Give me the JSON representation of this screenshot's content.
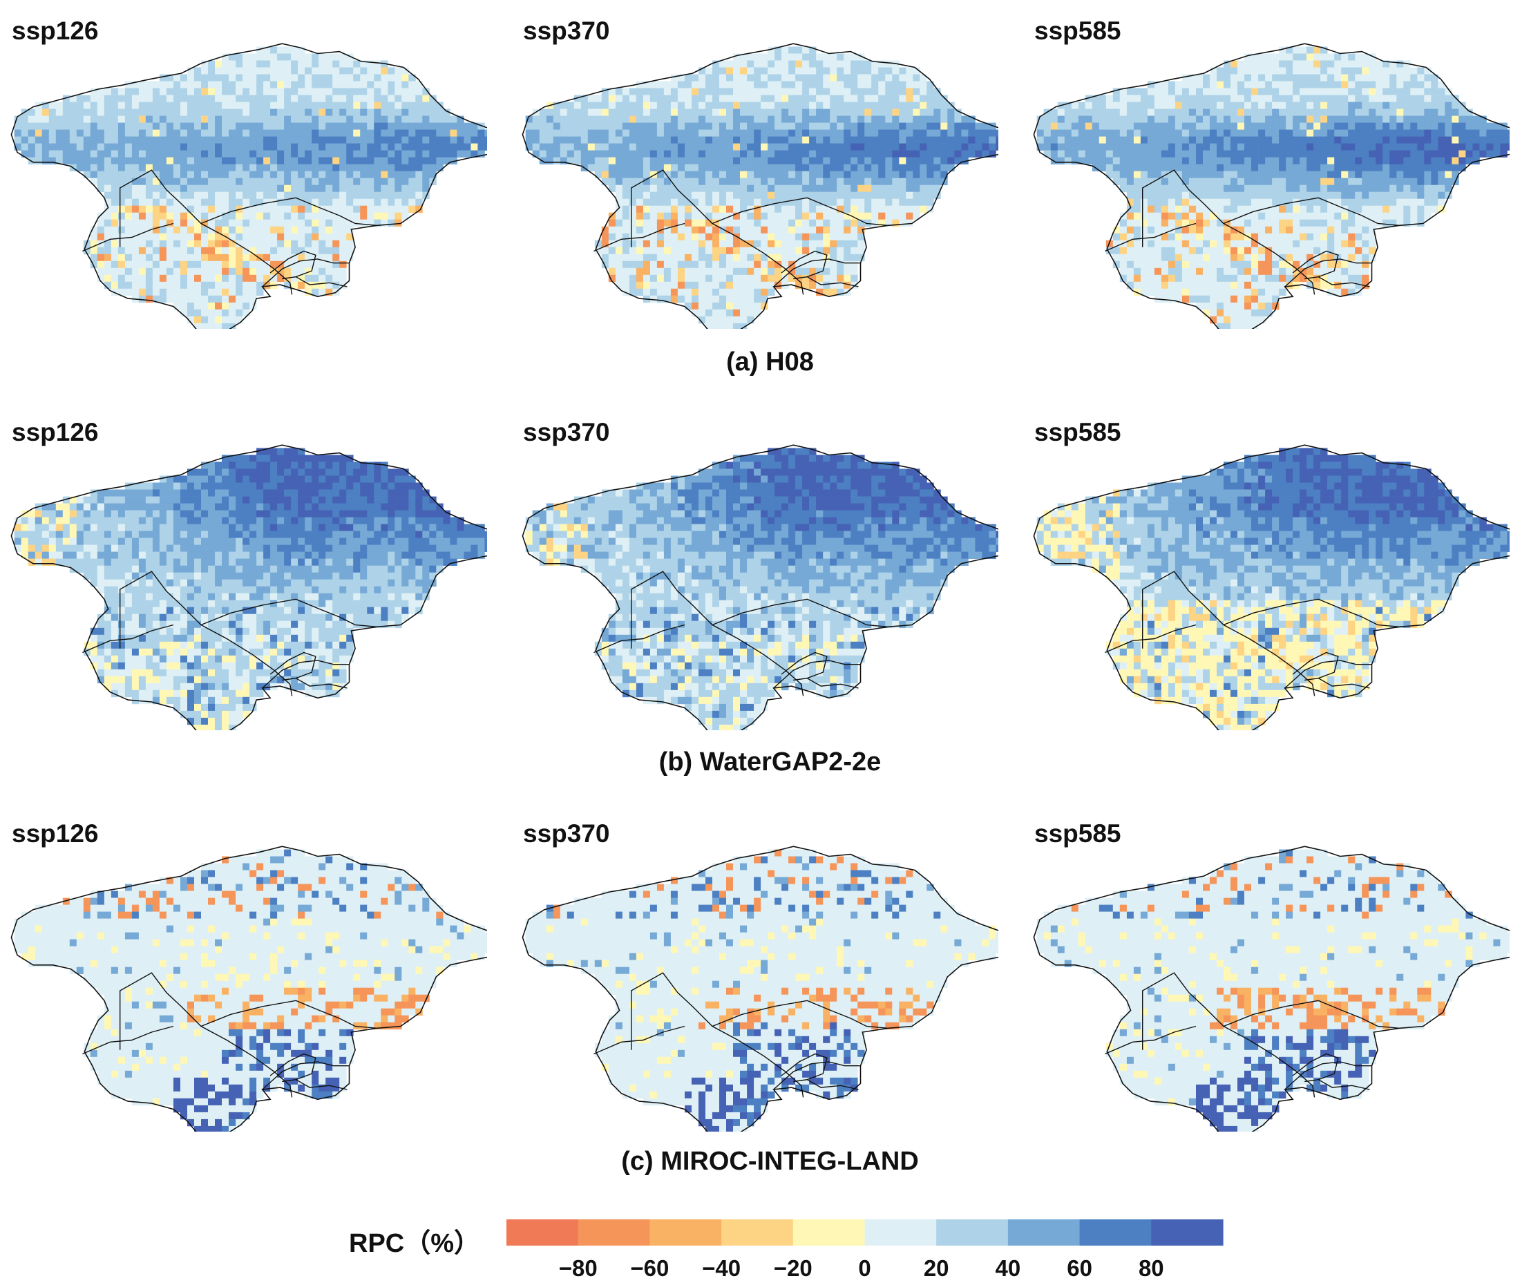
{
  "scenario_order": [
    "ssp126",
    "ssp370",
    "ssp585"
  ],
  "rows": [
    {
      "id": "h08",
      "title": "(a) H08",
      "scenarios": [
        "ssp126",
        "ssp370",
        "ssp585"
      ]
    },
    {
      "id": "watergap",
      "title": "(b) WaterGAP2-2e",
      "scenarios": [
        "ssp126",
        "ssp370",
        "ssp585"
      ]
    },
    {
      "id": "miroc",
      "title": "(c) MIROC-INTEG-LAND",
      "scenarios": [
        "ssp126",
        "ssp370",
        "ssp585"
      ]
    }
  ],
  "legend": {
    "title": "RPC（%）",
    "ticks": [
      "-80",
      "-60",
      "-40",
      "-20",
      "0",
      "20",
      "40",
      "60",
      "80"
    ],
    "classes": [
      {
        "range": "< -80",
        "color": "#f07a55"
      },
      {
        "range": "-80 to -60",
        "color": "#f5955a"
      },
      {
        "range": "-60 to -40",
        "color": "#f9b163"
      },
      {
        "range": "-40 to -20",
        "color": "#fdd384"
      },
      {
        "range": "-20 to 0",
        "color": "#fff7b5"
      },
      {
        "range": "0 to 20",
        "color": "#def0f5"
      },
      {
        "range": "20 to 40",
        "color": "#aed3e8"
      },
      {
        "range": "40 to 60",
        "color": "#76a9d6"
      },
      {
        "range": "60 to 80",
        "color": "#4c80c3"
      },
      {
        "range": "> 80",
        "color": "#4662b5"
      }
    ]
  }
}
